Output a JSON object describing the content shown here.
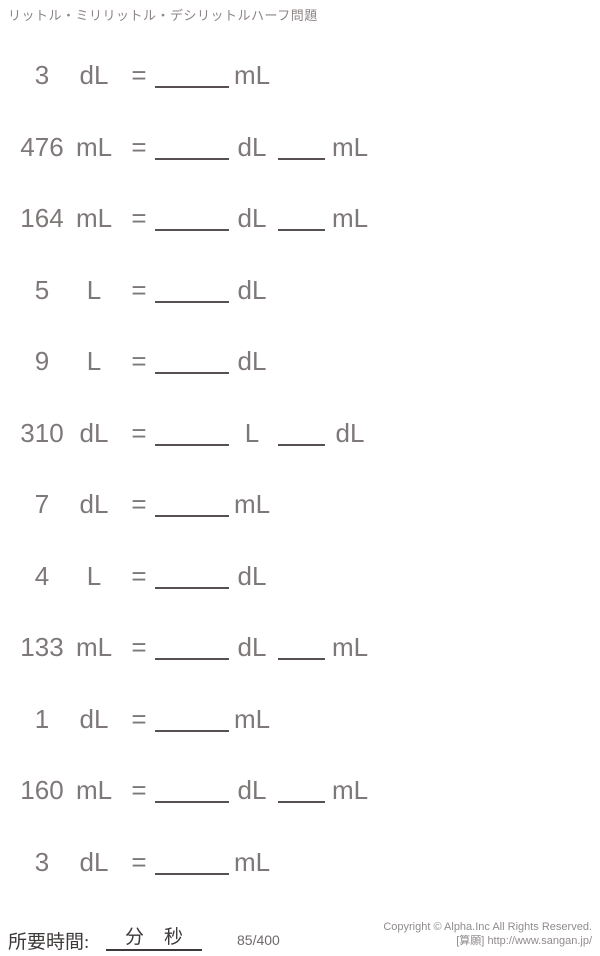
{
  "title": "リットル・ミリリットル・デシリットルハーフ問題",
  "equals_sign": "=",
  "problems": [
    {
      "value": "3",
      "unit": "dL",
      "answer_units": [
        "mL"
      ]
    },
    {
      "value": "476",
      "unit": "mL",
      "answer_units": [
        "dL",
        "mL"
      ]
    },
    {
      "value": "164",
      "unit": "mL",
      "answer_units": [
        "dL",
        "mL"
      ]
    },
    {
      "value": "5",
      "unit": "L",
      "answer_units": [
        "dL"
      ]
    },
    {
      "value": "9",
      "unit": "L",
      "answer_units": [
        "dL"
      ]
    },
    {
      "value": "310",
      "unit": "dL",
      "answer_units": [
        "L",
        "dL"
      ]
    },
    {
      "value": "7",
      "unit": "dL",
      "answer_units": [
        "mL"
      ]
    },
    {
      "value": "4",
      "unit": "L",
      "answer_units": [
        "dL"
      ]
    },
    {
      "value": "133",
      "unit": "mL",
      "answer_units": [
        "dL",
        "mL"
      ]
    },
    {
      "value": "1",
      "unit": "dL",
      "answer_units": [
        "mL"
      ]
    },
    {
      "value": "160",
      "unit": "mL",
      "answer_units": [
        "dL",
        "mL"
      ]
    },
    {
      "value": "3",
      "unit": "dL",
      "answer_units": [
        "mL"
      ]
    }
  ],
  "footer": {
    "time_label": "所要時間:",
    "minutes_label": "分",
    "seconds_label": "秒",
    "page_number": "85/400",
    "copyright": "Copyright © Alpha.Inc All Rights Reserved.",
    "credit_label": "[算願]",
    "credit_url": "http://www.sangan.jp/"
  },
  "colors": {
    "problem_text": "#7e7878",
    "underline": "#565050",
    "title_text": "#8d8585",
    "footer_text": "#3e3939",
    "copyright_text": "#918c8c"
  }
}
